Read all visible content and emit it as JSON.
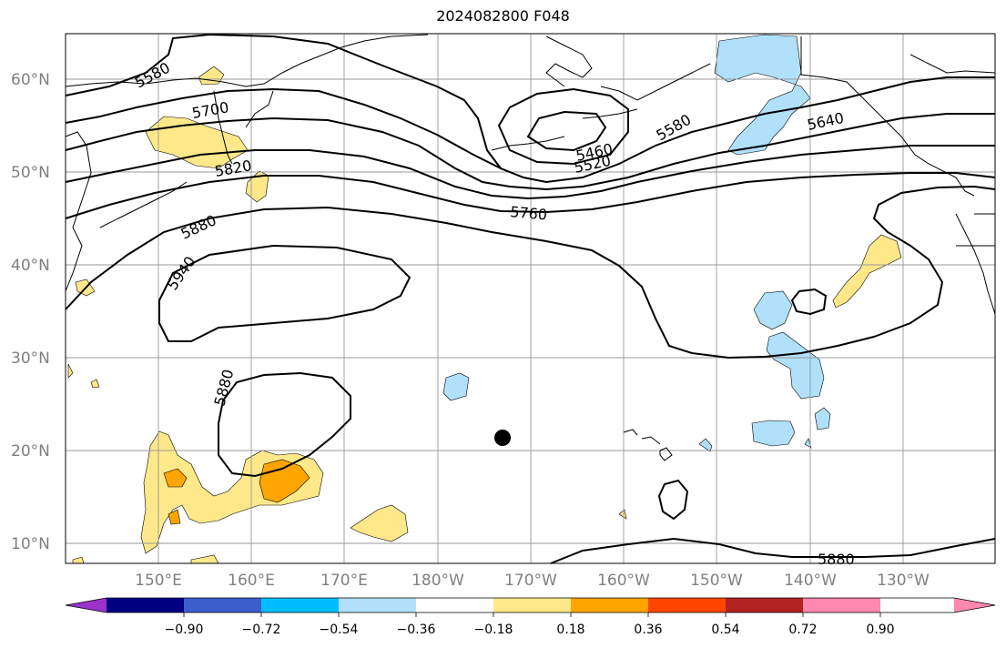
{
  "title": "2024082800 F048",
  "lat_labels": [
    "60°N",
    "50°N",
    "40°N",
    "30°N",
    "20°N",
    "10°N"
  ],
  "lon_labels": [
    "150°E",
    "160°E",
    "170°E",
    "180°W",
    "170°W",
    "160°W",
    "150°W",
    "140°W",
    "130°W"
  ],
  "contour_labels": [
    "5580",
    "5700",
    "5820",
    "5880",
    "5940",
    "5880",
    "5460",
    "5520",
    "5580",
    "5640",
    "5760",
    "5880"
  ],
  "colorbar": {
    "colors": [
      "#9933cc",
      "#000080",
      "#3a5fcd",
      "#00bfff",
      "#b0e0fa",
      "#ffffff",
      "#ffe88a",
      "#ffa500",
      "#ff4500",
      "#b22222",
      "#ff88b0"
    ],
    "ticks": [
      "−0.90",
      "−0.72",
      "−0.54",
      "−0.36",
      "−0.18",
      "0.18",
      "0.36",
      "0.54",
      "0.72",
      "0.90"
    ]
  },
  "marker": "storm-center-dot"
}
